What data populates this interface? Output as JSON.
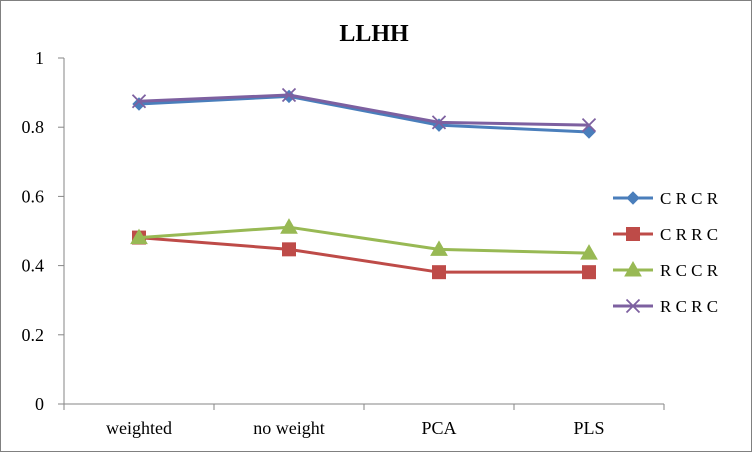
{
  "chart_data": {
    "type": "line",
    "title": "LLHH",
    "xlabel": "",
    "ylabel": "",
    "categories": [
      "weighted",
      "no weight",
      "PCA",
      "PLS"
    ],
    "ylim": [
      0,
      1
    ],
    "yticks": [
      "0",
      "0.2",
      "0.4",
      "0.6",
      "0.8",
      "1"
    ],
    "grid": false,
    "legend_position": "right",
    "series": [
      {
        "name": "C R C R",
        "color": "#4a7ebb",
        "marker": "diamond",
        "values": [
          0.867,
          0.889,
          0.806,
          0.786
        ]
      },
      {
        "name": "C R R C",
        "color": "#be4b48",
        "marker": "square",
        "values": [
          0.481,
          0.447,
          0.381,
          0.381
        ]
      },
      {
        "name": "R C C R",
        "color": "#98b954",
        "marker": "triangle",
        "values": [
          0.481,
          0.511,
          0.447,
          0.436
        ]
      },
      {
        "name": "R C R C",
        "color": "#7d60a0",
        "marker": "x",
        "values": [
          0.875,
          0.893,
          0.814,
          0.806
        ]
      }
    ]
  }
}
